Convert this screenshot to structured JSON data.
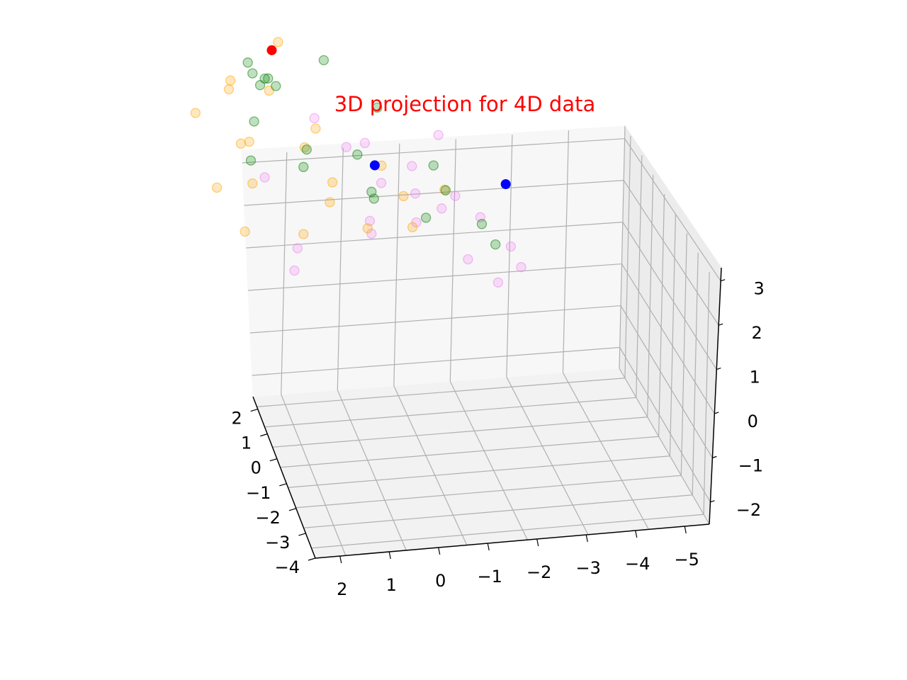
{
  "chart_data": {
    "type": "scatter",
    "projection": "3d",
    "title": "3D projection for 4D data",
    "title_color": "#ff0000",
    "grid": true,
    "legend": "none",
    "axes": {
      "x": {
        "range": [
          -4,
          2.5
        ],
        "ticks": [
          2,
          1,
          0,
          -1,
          -2,
          -3,
          -4
        ]
      },
      "y": {
        "range": [
          -5.5,
          2.5
        ],
        "ticks": [
          2,
          1,
          0,
          -1,
          -2,
          -3,
          -4,
          -5
        ]
      },
      "z": {
        "range": [
          -2.5,
          3.3
        ],
        "ticks": [
          3,
          2,
          1,
          0,
          -1,
          -2
        ]
      }
    },
    "series": [
      {
        "color": "#ee82ee",
        "alpha": 0.25,
        "points": [
          [
            0.2,
            -3.5,
            2.4
          ],
          [
            -0.5,
            -4.2,
            2.1
          ],
          [
            0.9,
            -2.5,
            2.6
          ],
          [
            -1.2,
            -4.6,
            1.5
          ],
          [
            -1.8,
            -3.9,
            0.6
          ],
          [
            -2.5,
            -3.2,
            -0.5
          ],
          [
            -2.9,
            -2.2,
            -1.5
          ],
          [
            -2.2,
            -1.0,
            -1.8
          ],
          [
            -1.6,
            0.6,
            -1.6
          ],
          [
            0.3,
            -2.4,
            1.8
          ],
          [
            -0.8,
            -3.1,
            0.9
          ],
          [
            -1.4,
            -2.5,
            0.2
          ],
          [
            -0.4,
            -1.2,
            -0.6
          ],
          [
            0.9,
            -1.1,
            -1.7
          ],
          [
            0.5,
            0.6,
            -2.0
          ],
          [
            -1.0,
            -4.0,
            2.7
          ],
          [
            0.1,
            -4.5,
            1.9
          ],
          [
            -2.1,
            -4.1,
            -0.9
          ],
          [
            -0.6,
            -0.4,
            -1.3
          ],
          [
            1.3,
            -0.3,
            0.2
          ]
        ]
      },
      {
        "color": "#ffa500",
        "alpha": 0.25,
        "points": [
          [
            1.6,
            1.5,
            1.5
          ],
          [
            0.8,
            1.9,
            1.2
          ],
          [
            1.3,
            1.1,
            0.4
          ],
          [
            2.0,
            0.4,
            -0.3
          ],
          [
            1.1,
            1.7,
            -0.9
          ],
          [
            -0.2,
            1.3,
            -1.3
          ],
          [
            0.5,
            0.2,
            0.6
          ],
          [
            1.8,
            -0.6,
            1.2
          ],
          [
            0.2,
            -0.8,
            0.2
          ],
          [
            -0.8,
            0.9,
            -1.8
          ],
          [
            -1.7,
            1.4,
            -2.1
          ],
          [
            0.6,
            2.2,
            2.2
          ],
          [
            1.4,
            0.8,
            -1.6
          ],
          [
            -0.5,
            -1.6,
            0.9
          ],
          [
            2.1,
            1.9,
            0.8
          ],
          [
            0.9,
            -1.8,
            -0.5
          ],
          [
            -1.3,
            0.3,
            -0.8
          ],
          [
            1.7,
            0.9,
            2.0
          ],
          [
            0.0,
            1.7,
            0.3
          ],
          [
            -2.4,
            2.1,
            -1.6
          ]
        ]
      },
      {
        "color": "#008000",
        "alpha": 0.25,
        "points": [
          [
            0.8,
            2.3,
            1.3
          ],
          [
            1.0,
            2.4,
            1.4
          ],
          [
            0.6,
            2.3,
            1.1
          ],
          [
            0.7,
            2.5,
            1.2
          ],
          [
            0.9,
            2.2,
            1.2
          ],
          [
            1.4,
            0.9,
            2.4
          ],
          [
            0.3,
            -0.3,
            2.9
          ],
          [
            -0.4,
            -1.6,
            2.3
          ],
          [
            -1.3,
            -2.2,
            1.1
          ],
          [
            -2.1,
            -2.6,
            -0.2
          ],
          [
            -2.6,
            -1.4,
            -1.3
          ],
          [
            -1.9,
            -0.4,
            -0.4
          ],
          [
            -0.9,
            0.9,
            -1.1
          ],
          [
            0.2,
            1.7,
            -0.6
          ],
          [
            1.2,
            1.4,
            -0.2
          ],
          [
            0.4,
            0.5,
            0.4
          ],
          [
            -0.5,
            -0.8,
            -0.1
          ],
          [
            1.7,
            -1.2,
            2.0
          ],
          [
            -1.0,
            -3.1,
            0.3
          ],
          [
            0.1,
            -2.4,
            1.6
          ]
        ]
      }
    ],
    "highlight_points": [
      {
        "color": "#ff0000",
        "point": [
          1.0,
          0.8,
          2.7
        ]
      },
      {
        "color": "#0000ff",
        "point": [
          -0.9,
          0.9,
          -0.3
        ]
      },
      {
        "color": "#0000ff",
        "point": [
          -2.3,
          -3.6,
          1.2
        ]
      }
    ]
  }
}
